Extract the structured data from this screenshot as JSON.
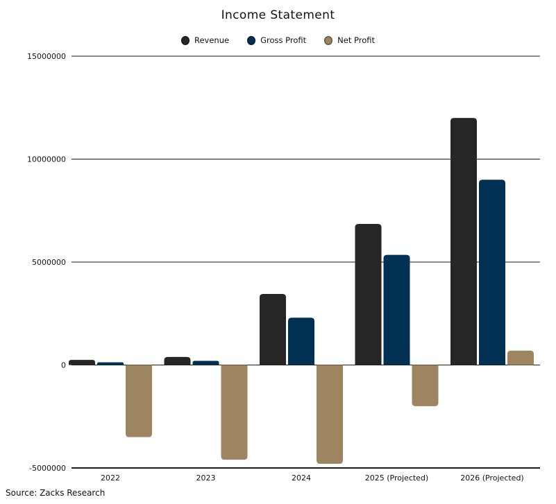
{
  "chart": {
    "title": "Income Statement",
    "source_note": "Source: Zacks Research"
  },
  "chart_data": {
    "type": "bar",
    "title": "Income Statement",
    "categories": [
      "2022",
      "2023",
      "2024",
      "2025 (Projected)",
      "2026 (Projected)"
    ],
    "series": [
      {
        "name": "Revenue",
        "color": "#262626",
        "values": [
          250000,
          390000,
          3450000,
          6850000,
          12000000
        ]
      },
      {
        "name": "Gross Profit",
        "color": "#003153",
        "values": [
          130000,
          200000,
          2300000,
          5350000,
          9000000
        ]
      },
      {
        "name": "Net Profit",
        "color": "#9d8562",
        "values": [
          -3500000,
          -4600000,
          -4800000,
          -2000000,
          700000
        ]
      }
    ],
    "xlabel": "",
    "ylabel": "",
    "ylim": [
      -5000000,
      15000000
    ],
    "y_ticks": [
      {
        "value": 15000000,
        "label": "15000000"
      },
      {
        "value": 10000000,
        "label": "10000000"
      },
      {
        "value": 5000000,
        "label": "5000000"
      },
      {
        "value": 0,
        "label": "0"
      },
      {
        "value": -5000000,
        "label": "-5000000"
      }
    ],
    "grid": true,
    "legend_position": "top",
    "source": "Source: Zacks Research",
    "colors": {
      "grid_line": "#1a1a1a",
      "axis_line": "#1a1a1a",
      "text": "#111111"
    }
  }
}
